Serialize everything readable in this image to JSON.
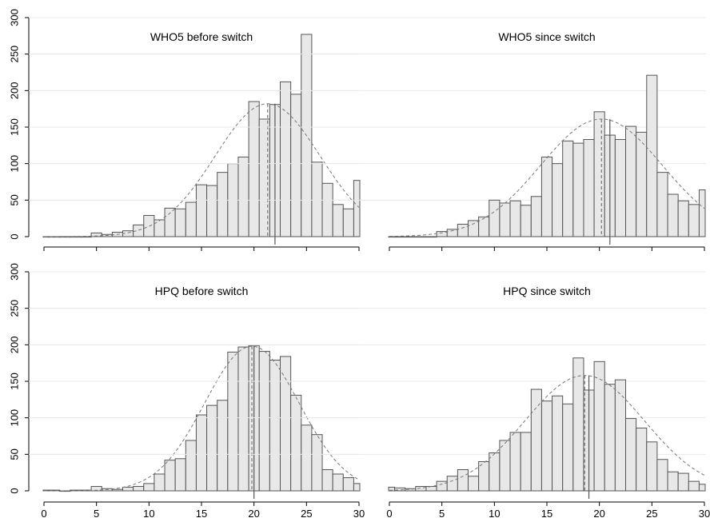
{
  "chart_data": [
    {
      "type": "histogram",
      "title": "WHO5 before switch",
      "bin_width": 1,
      "bin_start": 0,
      "counts": [
        0,
        0,
        0,
        0,
        0,
        5,
        3,
        6,
        8,
        16,
        29,
        23,
        39,
        38,
        47,
        71,
        70,
        88,
        100,
        109,
        185,
        161,
        181,
        212,
        195,
        277,
        102,
        73,
        44,
        38,
        77
      ],
      "normal_peak": 182,
      "normal_mean": 21.3,
      "normal_sd": 5.0,
      "mean": 21.3,
      "median": 22,
      "xlim": [
        0,
        30
      ],
      "ylim": [
        0,
        300
      ],
      "xticks": [],
      "yticks": [
        "0",
        "50",
        "100",
        "150",
        "200",
        "250",
        "300"
      ]
    },
    {
      "type": "histogram",
      "title": "WHO5 since switch",
      "bin_width": 1,
      "bin_start": 0,
      "counts": [
        0,
        0,
        0,
        0,
        0,
        7,
        10,
        17,
        22,
        27,
        50,
        46,
        49,
        43,
        55,
        109,
        100,
        131,
        128,
        133,
        171,
        139,
        133,
        151,
        143,
        221,
        88,
        58,
        49,
        44,
        64
      ],
      "normal_peak": 161,
      "normal_mean": 20.2,
      "normal_sd": 5.8,
      "mean": 20.2,
      "median": 21,
      "xlim": [
        0,
        30
      ],
      "ylim": [
        0,
        300
      ],
      "xticks": [],
      "yticks": []
    },
    {
      "type": "histogram",
      "title": "HPQ before switch",
      "bin_width": 1,
      "bin_start": 0,
      "counts": [
        1,
        1,
        0,
        1,
        1,
        6,
        3,
        2,
        5,
        6,
        10,
        23,
        42,
        44,
        69,
        104,
        117,
        124,
        190,
        197,
        199,
        191,
        179,
        184,
        131,
        90,
        77,
        29,
        23,
        18,
        10
      ],
      "normal_peak": 198,
      "normal_mean": 19.8,
      "normal_sd": 4.5,
      "mean": 19.8,
      "median": 20,
      "xlim": [
        0,
        30
      ],
      "ylim": [
        0,
        300
      ],
      "xticks": [
        "0",
        "5",
        "10",
        "15",
        "20",
        "25",
        "30"
      ],
      "yticks": [
        "0",
        "50",
        "100",
        "150",
        "200",
        "250",
        "300"
      ]
    },
    {
      "type": "histogram",
      "title": "HPQ since switch",
      "bin_width": 1,
      "bin_start": 0,
      "counts": [
        5,
        4,
        3,
        6,
        6,
        13,
        20,
        29,
        20,
        40,
        52,
        69,
        80,
        80,
        139,
        123,
        130,
        119,
        182,
        138,
        177,
        146,
        152,
        99,
        86,
        67,
        43,
        26,
        24,
        13,
        9
      ],
      "normal_peak": 158,
      "normal_mean": 18.6,
      "normal_sd": 5.7,
      "mean": 18.6,
      "median": 19,
      "xlim": [
        0,
        30
      ],
      "ylim": [
        0,
        300
      ],
      "xticks": [
        "0",
        "5",
        "10",
        "15",
        "20",
        "25",
        "30"
      ],
      "yticks": []
    }
  ]
}
